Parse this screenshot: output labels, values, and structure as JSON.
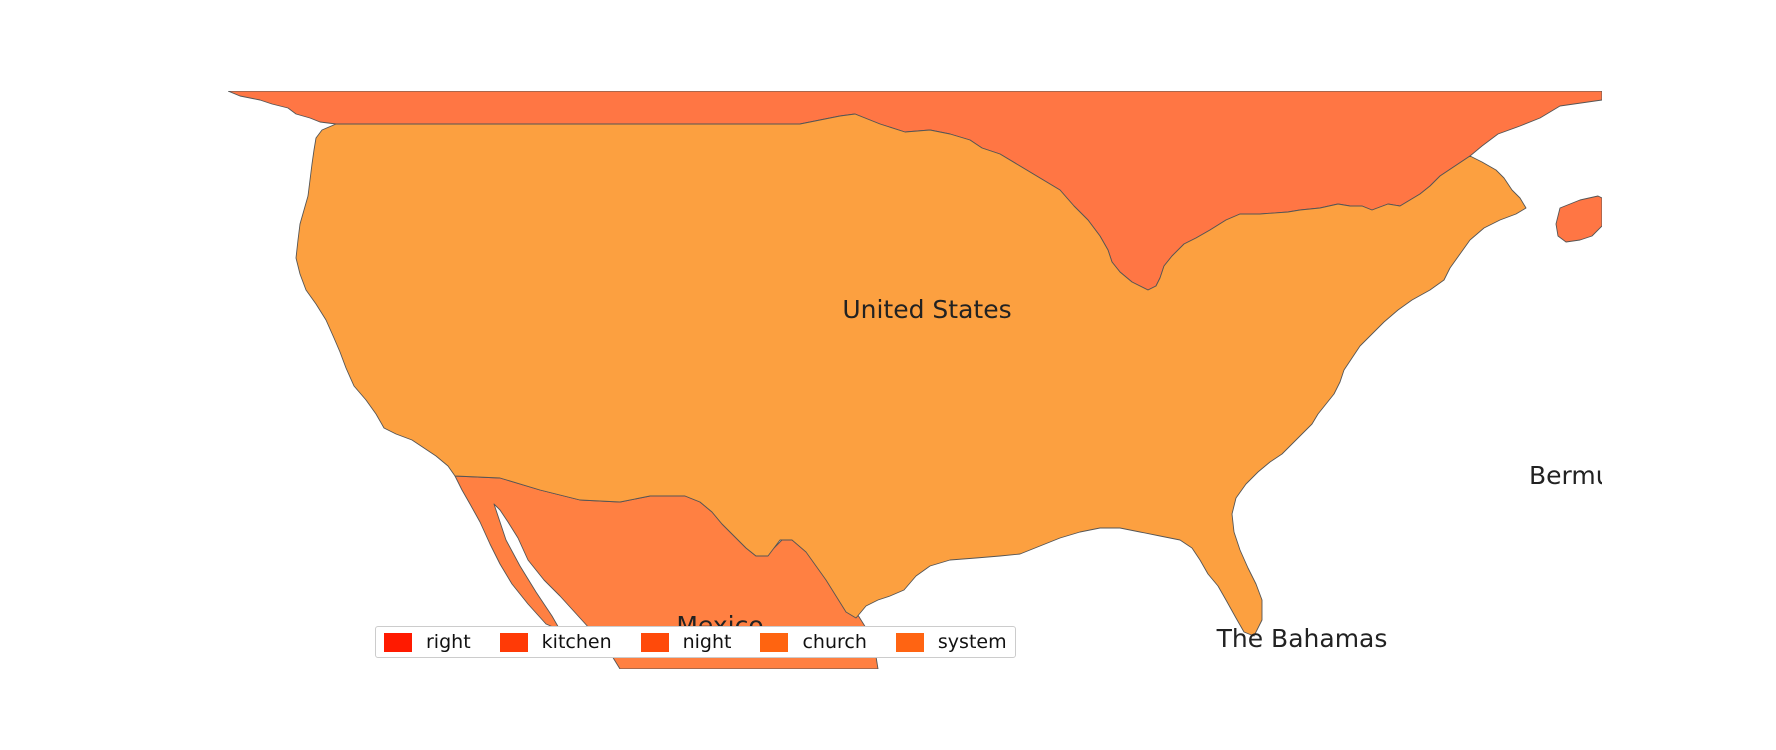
{
  "map": {
    "regions": [
      {
        "id": "canada",
        "fill": "#ff7644"
      },
      {
        "id": "united-states",
        "fill": "#fca040"
      },
      {
        "id": "mexico",
        "fill": "#ff8042"
      },
      {
        "id": "newfoundland",
        "fill": "#ff7644"
      }
    ],
    "labels": {
      "united_states": "United States",
      "mexico": "Mexico",
      "bahamas": "The Bahamas",
      "bermuda": "Bermu"
    }
  },
  "legend": {
    "items": [
      {
        "label": "right",
        "color": "#ff1a00"
      },
      {
        "label": "kitchen",
        "color": "#ff3a06"
      },
      {
        "label": "night",
        "color": "#ff4a0a"
      },
      {
        "label": "church",
        "color": "#ff6410"
      },
      {
        "label": "system",
        "color": "#ff6412"
      }
    ]
  }
}
